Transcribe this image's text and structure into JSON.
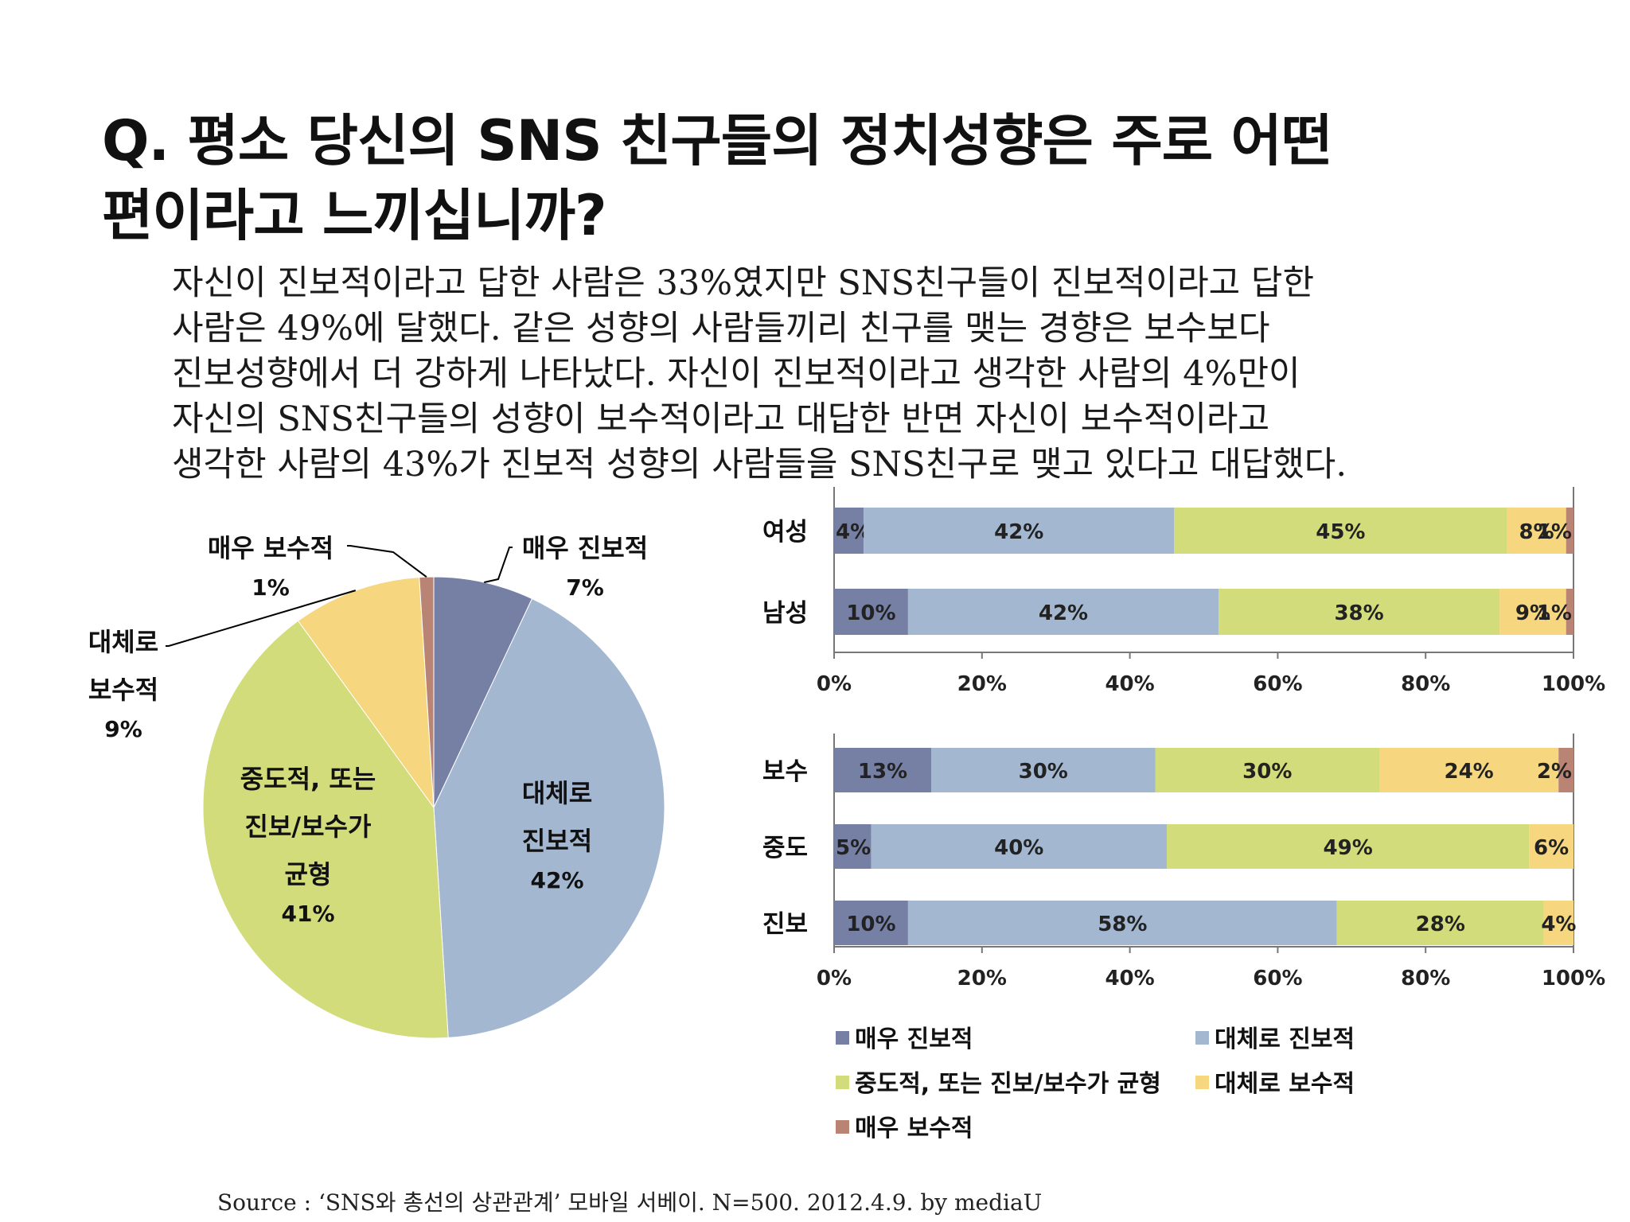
{
  "title_lines": [
    "Q. 평소 당신의 SNS 친구들의 정치성향은 주로 어떤",
    "편이라고 느끼십니까?"
  ],
  "body_lines": [
    "자신이 진보적이라고 답한 사람은 33%였지만 SNS친구들이 진보적이라고 답한",
    "사람은 49%에 달했다. 같은 성향의 사람들끼리 친구를 맺는 경향은 보수보다",
    "진보성향에서 더 강하게 나타났다. 자신이 진보적이라고 생각한 사람의 4%만이",
    "자신의 SNS친구들의 성향이 보수적이라고 대답한 반면 자신이 보수적이라고",
    "생각한 사람의 43%가 진보적 성향의 사람들을 SNS친구로 맺고 있다고 대답했다."
  ],
  "source": "Source : ‘SNS와 총선의 상관관계’ 모바일 서베이. N=500. 2012.4.9. by mediaU",
  "colors": {
    "c1": "#7680a4",
    "c2": "#a3b7d0",
    "c3": "#d3dc7b",
    "c4": "#f6d77f",
    "c5": "#b98474"
  },
  "chart_data": [
    {
      "type": "pie",
      "categories": [
        "매우 진보적",
        "대체로 진보적",
        "중도적, 또는 진보/보수가 균형",
        "대체로 보수적",
        "매우 보수적"
      ],
      "values": [
        7,
        42,
        41,
        9,
        1
      ],
      "slice_labels": [
        {
          "lines": [
            "매우 진보적"
          ],
          "pct": "7%"
        },
        {
          "lines": [
            "대체로",
            "진보적"
          ],
          "pct": "42%"
        },
        {
          "lines": [
            "중도적, 또는",
            "진보/보수가",
            "균형"
          ],
          "pct": "41%"
        },
        {
          "lines": [
            "대체로",
            "보수적"
          ],
          "pct": "9%"
        },
        {
          "lines": [
            "매우 보수적"
          ],
          "pct": "1%"
        }
      ]
    },
    {
      "type": "bar",
      "stacked": true,
      "orientation": "horizontal",
      "categories": [
        "여성",
        "남성"
      ],
      "series": [
        {
          "name": "매우 진보적",
          "values": [
            4,
            10
          ]
        },
        {
          "name": "대체로 진보적",
          "values": [
            42,
            42
          ]
        },
        {
          "name": "중도적, 또는 진보/보수가 균형",
          "values": [
            45,
            38
          ]
        },
        {
          "name": "대체로 보수적",
          "values": [
            8,
            9
          ]
        },
        {
          "name": "매우 보수적",
          "values": [
            1,
            1
          ]
        }
      ],
      "xlim": [
        0,
        100
      ],
      "x_ticks": [
        "0%",
        "20%",
        "40%",
        "60%",
        "80%",
        "100%"
      ]
    },
    {
      "type": "bar",
      "stacked": true,
      "orientation": "horizontal",
      "categories": [
        "보수",
        "중도",
        "진보"
      ],
      "series": [
        {
          "name": "매우 진보적",
          "values": [
            13,
            5,
            10
          ]
        },
        {
          "name": "대체로 진보적",
          "values": [
            30,
            40,
            58
          ]
        },
        {
          "name": "중도적, 또는 진보/보수가 균형",
          "values": [
            30,
            49,
            28
          ]
        },
        {
          "name": "대체로 보수적",
          "values": [
            24,
            6,
            4
          ]
        },
        {
          "name": "매우 보수적",
          "values": [
            2,
            0,
            0
          ]
        }
      ],
      "xlim": [
        0,
        100
      ],
      "x_ticks": [
        "0%",
        "20%",
        "40%",
        "60%",
        "80%",
        "100%"
      ],
      "legend": [
        "매우 진보적",
        "대체로 진보적",
        "중도적, 또는 진보/보수가 균형",
        "대체로 보수적",
        "매우 보수적"
      ]
    }
  ]
}
